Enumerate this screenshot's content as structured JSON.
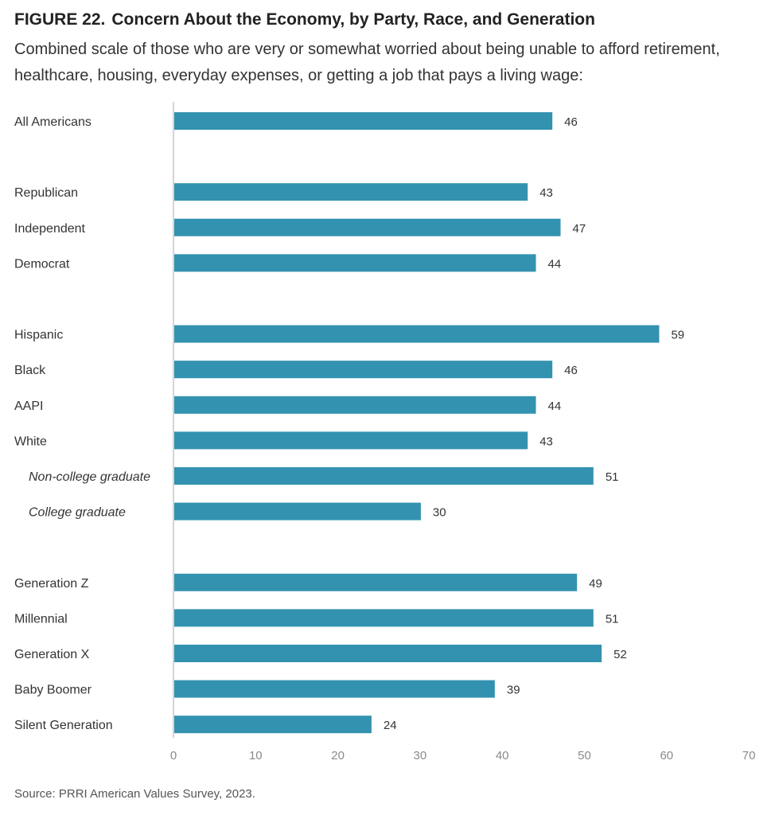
{
  "figure": {
    "number": "FIGURE 22.",
    "title": "Concern About the Economy, by Party, Race, and Generation",
    "subtitle": "Combined scale of those who are very or somewhat worried about being unable to afford retirement, healthcare, housing, everyday expenses, or getting a job that pays a living wage:",
    "source": "Source: PRRI American Values Survey, 2023."
  },
  "chart_data": {
    "type": "bar",
    "orientation": "horizontal",
    "categories": [
      "All Americans",
      "Republican",
      "Independent",
      "Democrat",
      "Hispanic",
      "Black",
      "AAPI",
      "White",
      "Non-college graduate",
      "College graduate",
      "Generation Z",
      "Millennial",
      "Generation X",
      "Baby Boomer",
      "Silent Generation"
    ],
    "groups": [
      [
        0
      ],
      [
        1,
        2,
        3
      ],
      [
        4,
        5,
        6,
        7,
        8,
        9
      ],
      [
        10,
        11,
        12,
        13,
        14
      ]
    ],
    "italic_categories": [
      "Non-college graduate",
      "College graduate"
    ],
    "values": [
      46,
      43,
      47,
      44,
      59,
      46,
      44,
      43,
      51,
      30,
      49,
      51,
      52,
      39,
      24
    ],
    "xlim": [
      0,
      70
    ],
    "xticks": [
      0,
      10,
      20,
      30,
      40,
      50,
      60,
      70
    ],
    "data_labels": true,
    "grid": false,
    "bar_color": "#3392B0"
  },
  "colors": {
    "bar": "#3392B0",
    "axis": "#d4d4d4",
    "label": "#333333",
    "tick": "#8a8a8a"
  }
}
